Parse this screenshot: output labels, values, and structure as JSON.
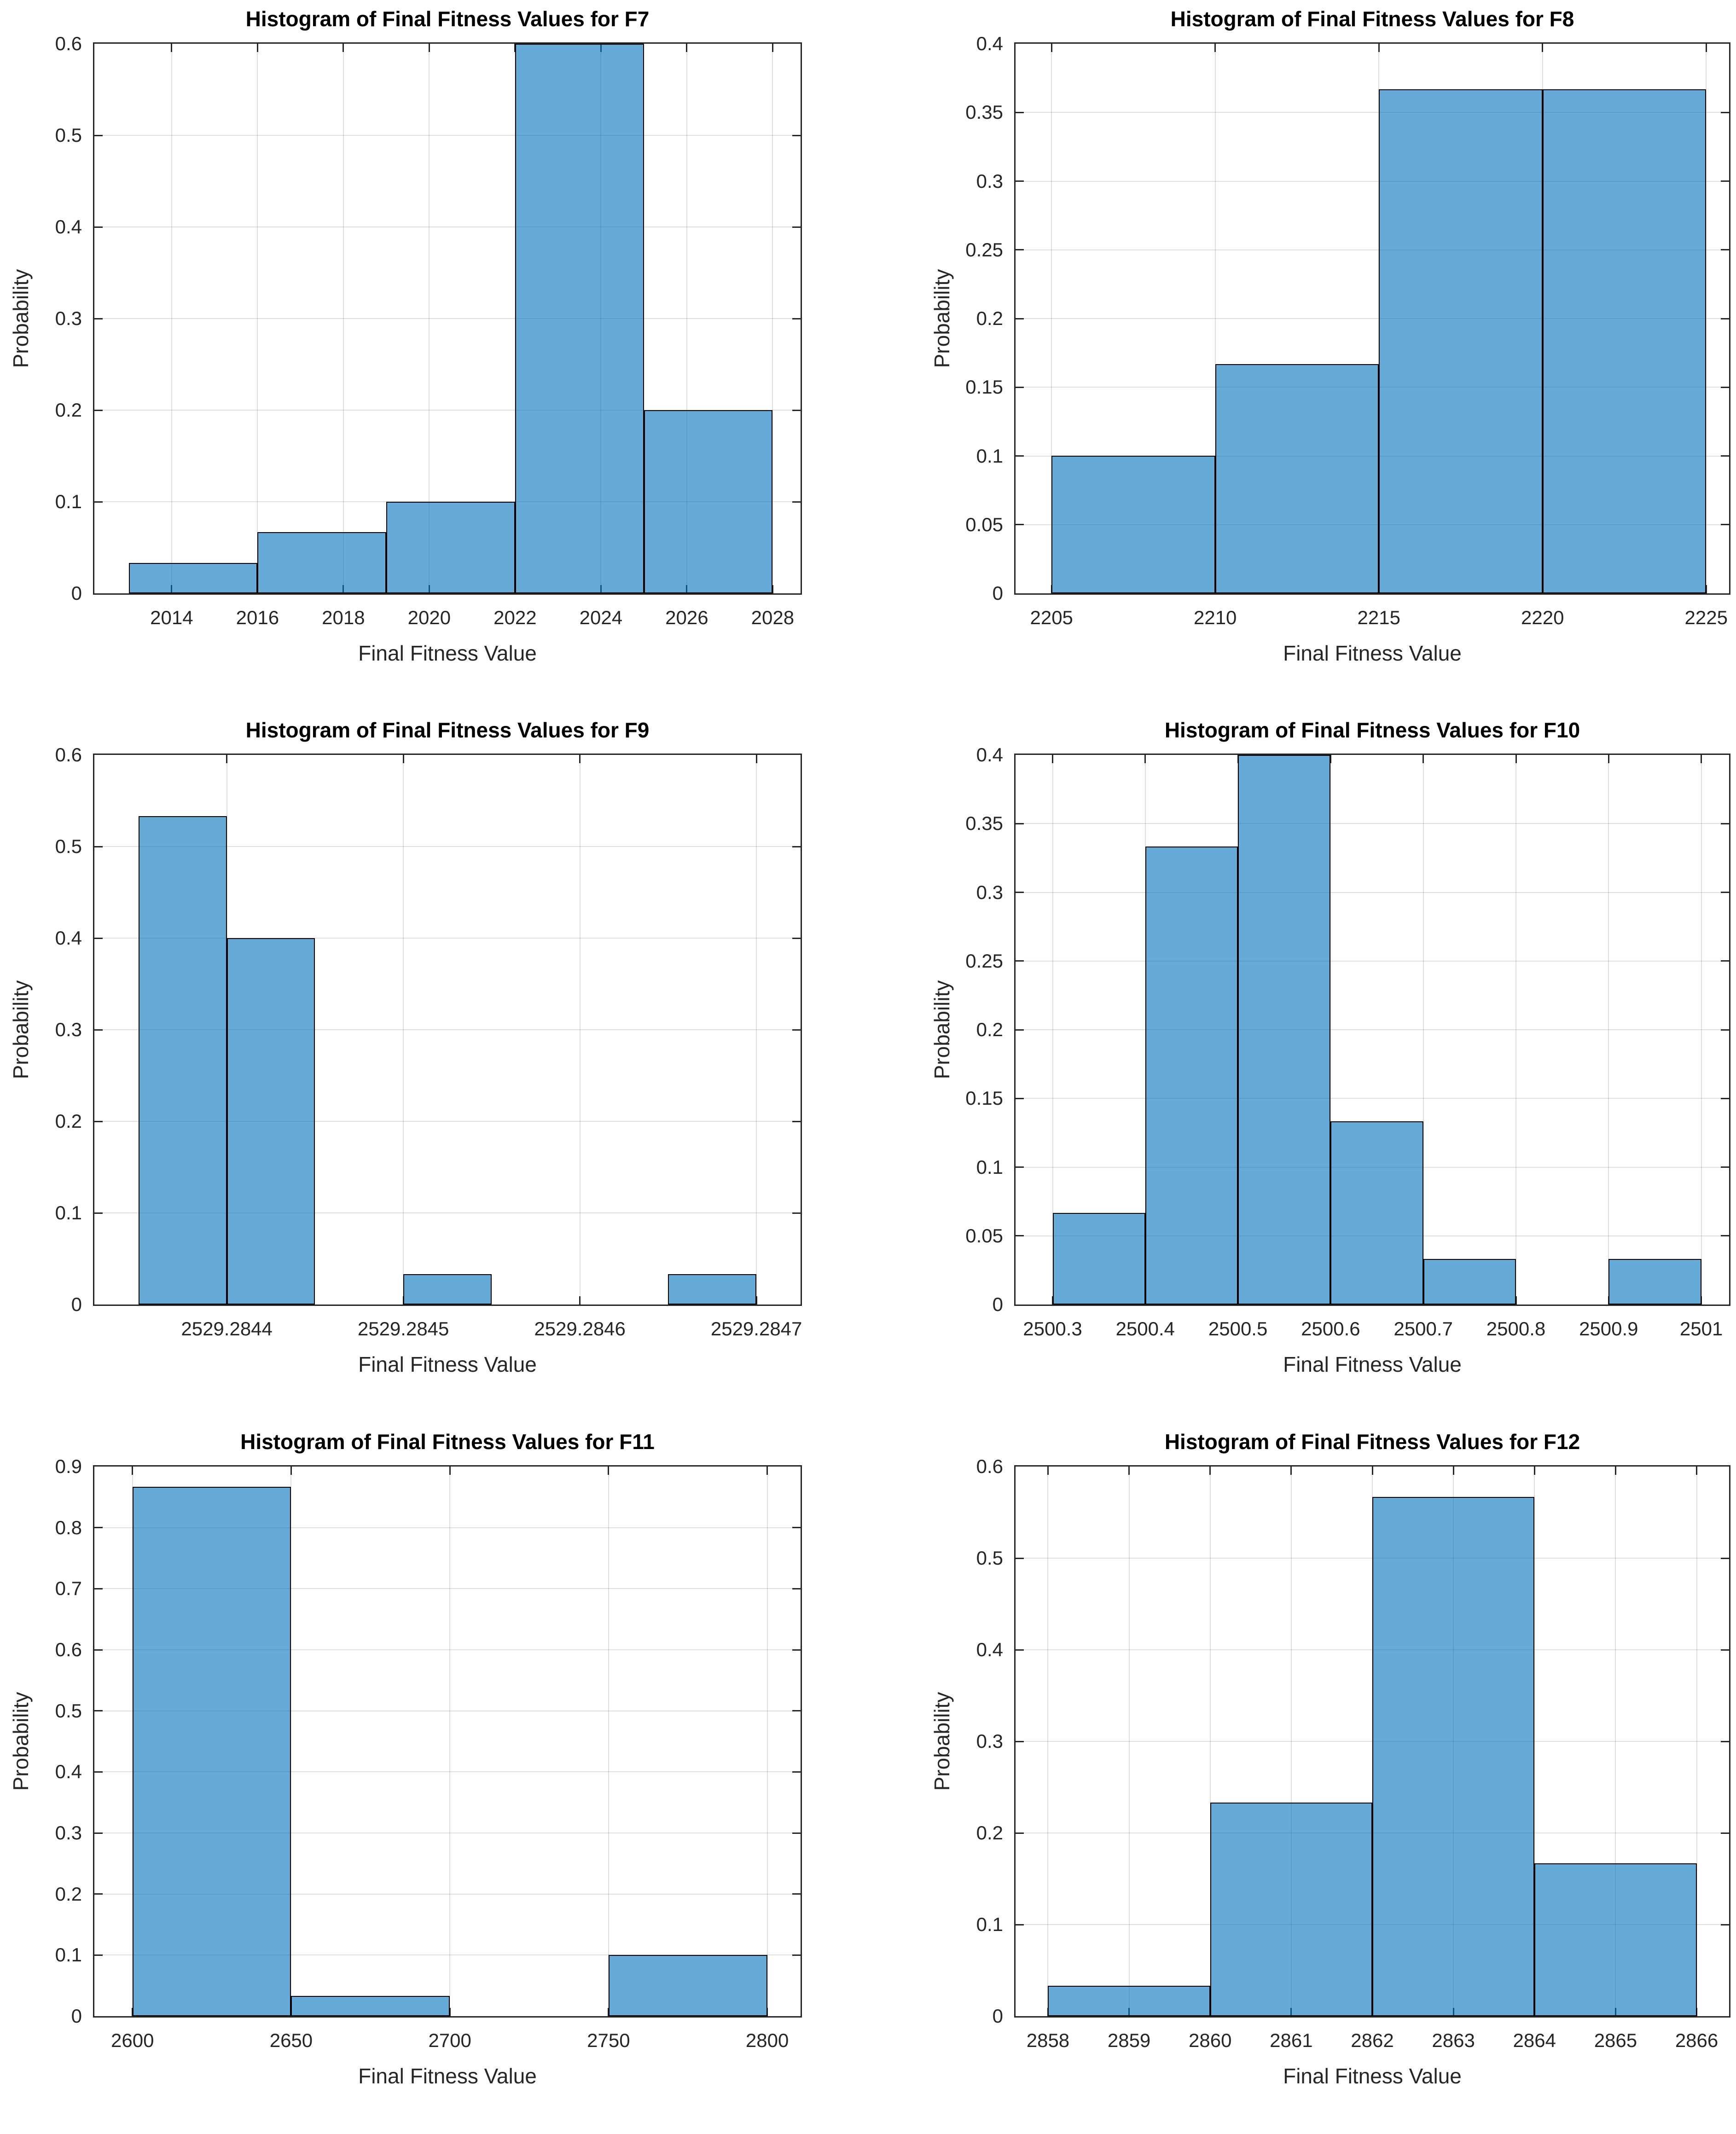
{
  "figure": {
    "xlabel": "Final Fitness Value",
    "ylabel": "Probability"
  },
  "colors": {
    "bar_face": "#0072BD",
    "bar_face_alpha": 0.6,
    "bar_face_rendered": "#66AAD7",
    "bar_edge": "#000000",
    "axis_box": "#262626",
    "grid": "#262626",
    "grid_alpha": 0.15,
    "tick_label": "#262626",
    "title": "#000000"
  },
  "chart_data": [
    {
      "id": "F7",
      "type": "bar",
      "title": "Histogram of Final Fitness Values for F7",
      "xlabel": "Final Fitness Value",
      "ylabel": "Probability",
      "xlim": [
        2012.2,
        2028.65
      ],
      "ylim": [
        0,
        0.6
      ],
      "grid": true,
      "xticks": [
        2014,
        2016,
        2018,
        2020,
        2022,
        2024,
        2026,
        2028
      ],
      "xtick_labels": [
        "2014",
        "2016",
        "2018",
        "2020",
        "2022",
        "2024",
        "2026",
        "2028"
      ],
      "yticks": [
        0,
        0.1,
        0.2,
        0.3,
        0.4,
        0.5,
        0.6
      ],
      "ytick_labels": [
        "0",
        "0.1",
        "0.2",
        "0.3",
        "0.4",
        "0.5",
        "0.6"
      ],
      "bins": [
        {
          "x0": 2013,
          "x1": 2016,
          "p": 0.0333
        },
        {
          "x0": 2016,
          "x1": 2019,
          "p": 0.0667
        },
        {
          "x0": 2019,
          "x1": 2022,
          "p": 0.1
        },
        {
          "x0": 2022,
          "x1": 2025,
          "p": 0.6
        },
        {
          "x0": 2025,
          "x1": 2028,
          "p": 0.2
        }
      ]
    },
    {
      "id": "F8",
      "type": "bar",
      "title": "Histogram of Final Fitness Values for F8",
      "xlabel": "Final Fitness Value",
      "ylabel": "Probability",
      "xlim": [
        2203.9,
        2225.7
      ],
      "ylim": [
        0,
        0.4
      ],
      "grid": true,
      "xticks": [
        2205,
        2210,
        2215,
        2220,
        2225
      ],
      "xtick_labels": [
        "2205",
        "2210",
        "2215",
        "2220",
        "2225"
      ],
      "yticks": [
        0,
        0.05,
        0.1,
        0.15,
        0.2,
        0.25,
        0.3,
        0.35,
        0.4
      ],
      "ytick_labels": [
        "0",
        "0.05",
        "0.1",
        "0.15",
        "0.2",
        "0.25",
        "0.3",
        "0.35",
        "0.4"
      ],
      "bins": [
        {
          "x0": 2205,
          "x1": 2210,
          "p": 0.1
        },
        {
          "x0": 2210,
          "x1": 2215,
          "p": 0.1667
        },
        {
          "x0": 2215,
          "x1": 2220,
          "p": 0.3667
        },
        {
          "x0": 2220,
          "x1": 2225,
          "p": 0.3667
        }
      ]
    },
    {
      "id": "F9",
      "type": "bar",
      "title": "Histogram of Final Fitness Values for F9",
      "xlabel": "Final Fitness Value",
      "ylabel": "Probability",
      "xlim": [
        2529.284325,
        2529.284725
      ],
      "ylim": [
        0,
        0.6
      ],
      "grid": true,
      "xticks": [
        2529.2844,
        2529.2845,
        2529.2846,
        2529.2847
      ],
      "xtick_labels": [
        "2529.2844",
        "2529.2845",
        "2529.2846",
        "2529.2847"
      ],
      "yticks": [
        0,
        0.1,
        0.2,
        0.3,
        0.4,
        0.5,
        0.6
      ],
      "ytick_labels": [
        "0",
        "0.1",
        "0.2",
        "0.3",
        "0.4",
        "0.5",
        "0.6"
      ],
      "bins": [
        {
          "x0": 2529.28435,
          "x1": 2529.2844,
          "p": 0.5333
        },
        {
          "x0": 2529.2844,
          "x1": 2529.28445,
          "p": 0.4
        },
        {
          "x0": 2529.2845,
          "x1": 2529.28455,
          "p": 0.0333
        },
        {
          "x0": 2529.28465,
          "x1": 2529.2847,
          "p": 0.0333
        }
      ]
    },
    {
      "id": "F10",
      "type": "bar",
      "title": "Histogram of Final Fitness Values for F10",
      "xlabel": "Final Fitness Value",
      "ylabel": "Probability",
      "xlim": [
        2500.26,
        2501.03
      ],
      "ylim": [
        0,
        0.4
      ],
      "grid": true,
      "xticks": [
        2500.3,
        2500.4,
        2500.5,
        2500.6,
        2500.7,
        2500.8,
        2500.9,
        2501
      ],
      "xtick_labels": [
        "2500.3",
        "2500.4",
        "2500.5",
        "2500.6",
        "2500.7",
        "2500.8",
        "2500.9",
        "2501"
      ],
      "yticks": [
        0,
        0.05,
        0.1,
        0.15,
        0.2,
        0.25,
        0.3,
        0.35,
        0.4
      ],
      "ytick_labels": [
        "0",
        "0.05",
        "0.1",
        "0.15",
        "0.2",
        "0.25",
        "0.3",
        "0.35",
        "0.4"
      ],
      "bins": [
        {
          "x0": 2500.3,
          "x1": 2500.4,
          "p": 0.0667
        },
        {
          "x0": 2500.4,
          "x1": 2500.5,
          "p": 0.3333
        },
        {
          "x0": 2500.5,
          "x1": 2500.6,
          "p": 0.4
        },
        {
          "x0": 2500.6,
          "x1": 2500.7,
          "p": 0.1333
        },
        {
          "x0": 2500.7,
          "x1": 2500.8,
          "p": 0.0333
        },
        {
          "x0": 2500.9,
          "x1": 2501,
          "p": 0.0333
        }
      ]
    },
    {
      "id": "F11",
      "type": "bar",
      "title": "Histogram of Final Fitness Values for F11",
      "xlabel": "Final Fitness Value",
      "ylabel": "Probability",
      "xlim": [
        2588,
        2810.5
      ],
      "ylim": [
        0,
        0.9
      ],
      "grid": true,
      "xticks": [
        2600,
        2650,
        2700,
        2750,
        2800
      ],
      "xtick_labels": [
        "2600",
        "2650",
        "2700",
        "2750",
        "2800"
      ],
      "yticks": [
        0,
        0.1,
        0.2,
        0.3,
        0.4,
        0.5,
        0.6,
        0.7,
        0.8,
        0.9
      ],
      "ytick_labels": [
        "0",
        "0.1",
        "0.2",
        "0.3",
        "0.4",
        "0.5",
        "0.6",
        "0.7",
        "0.8",
        "0.9"
      ],
      "bins": [
        {
          "x0": 2600,
          "x1": 2650,
          "p": 0.8667
        },
        {
          "x0": 2650,
          "x1": 2700,
          "p": 0.0333
        },
        {
          "x0": 2750,
          "x1": 2800,
          "p": 0.1
        }
      ]
    },
    {
      "id": "F12",
      "type": "bar",
      "title": "Histogram of Final Fitness Values for F12",
      "xlabel": "Final Fitness Value",
      "ylabel": "Probability",
      "xlim": [
        2857.6,
        2866.4
      ],
      "ylim": [
        0,
        0.6
      ],
      "grid": true,
      "xticks": [
        2858,
        2859,
        2860,
        2861,
        2862,
        2863,
        2864,
        2865,
        2866
      ],
      "xtick_labels": [
        "2858",
        "2859",
        "2860",
        "2861",
        "2862",
        "2863",
        "2864",
        "2865",
        "2866"
      ],
      "yticks": [
        0,
        0.1,
        0.2,
        0.3,
        0.4,
        0.5,
        0.6
      ],
      "ytick_labels": [
        "0",
        "0.1",
        "0.2",
        "0.3",
        "0.4",
        "0.5",
        "0.6"
      ],
      "bins": [
        {
          "x0": 2858,
          "x1": 2860,
          "p": 0.0333
        },
        {
          "x0": 2860,
          "x1": 2862,
          "p": 0.2333
        },
        {
          "x0": 2862,
          "x1": 2864,
          "p": 0.5667
        },
        {
          "x0": 2864,
          "x1": 2866,
          "p": 0.1667
        }
      ]
    }
  ]
}
